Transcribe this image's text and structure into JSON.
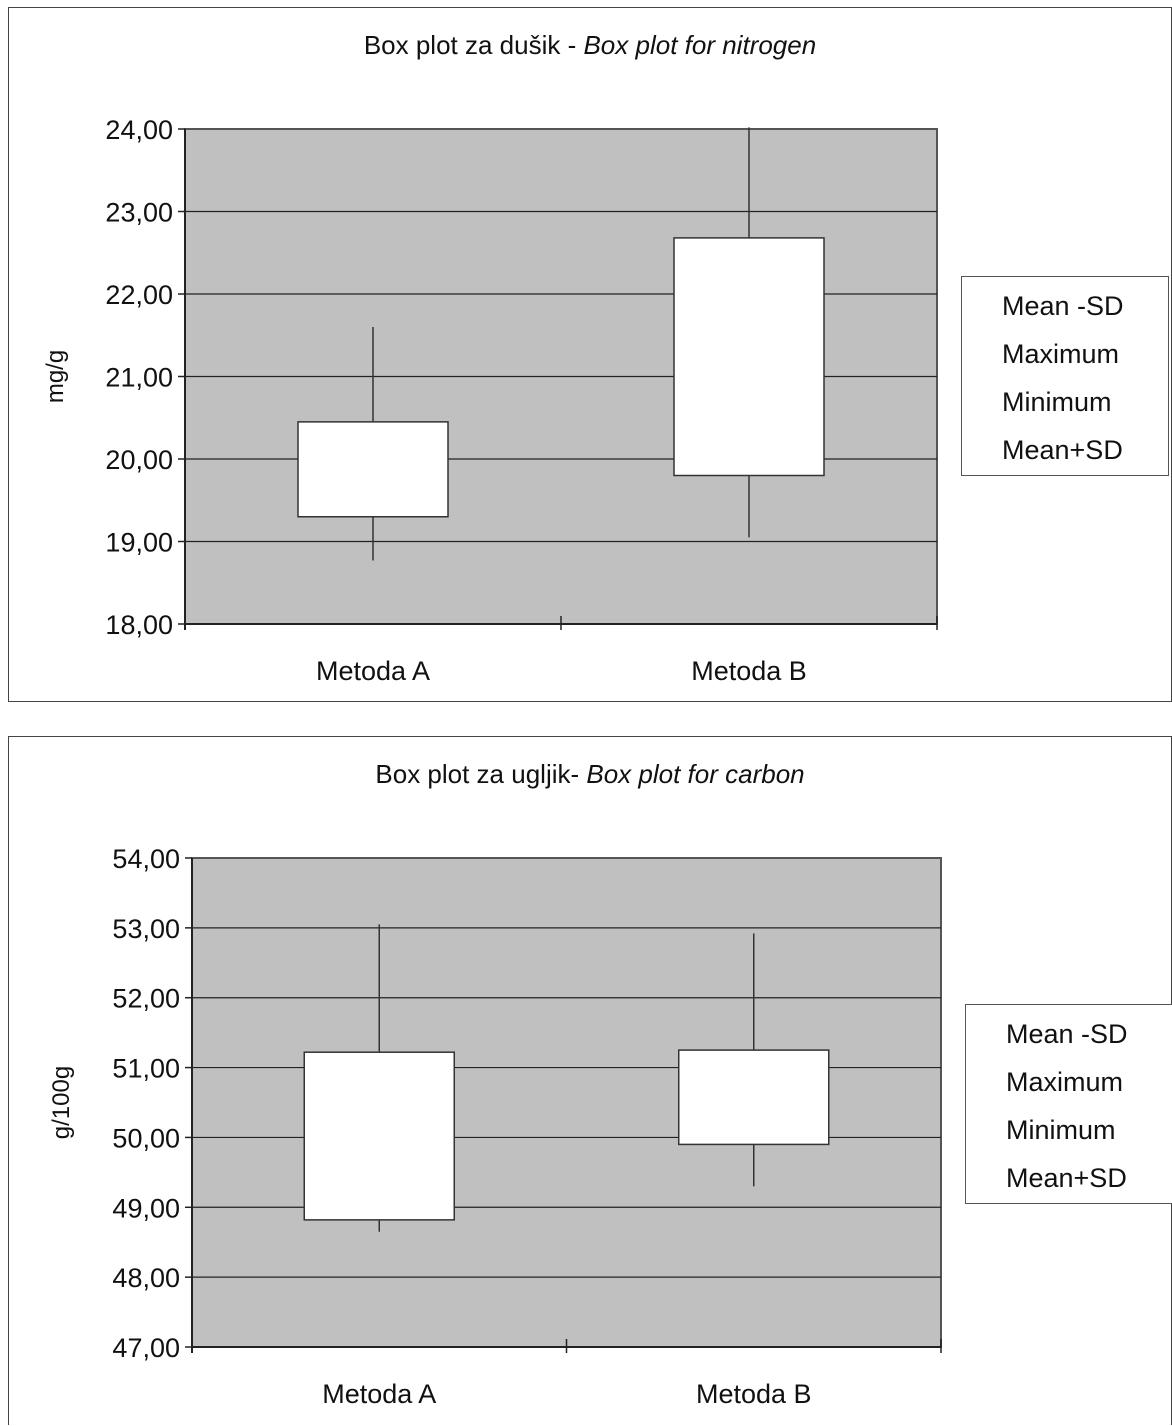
{
  "chart_data": [
    {
      "type": "box",
      "title_plain": "Box plot za dušik - ",
      "title_italic": "Box plot for nitrogen",
      "ylabel": "mg/g",
      "ylim": [
        18,
        24
      ],
      "yticks": [
        "18,00",
        "19,00",
        "20,00",
        "21,00",
        "22,00",
        "23,00",
        "24,00"
      ],
      "categories": [
        "Metoda A",
        "Metoda B"
      ],
      "legend": [
        "Mean -SD",
        "Maximum",
        "Minimum",
        "Mean+SD"
      ],
      "legend_position": "right",
      "grid": true,
      "series": [
        {
          "category": "Metoda A",
          "mean_minus_sd": 19.3,
          "maximum": 21.6,
          "minimum": 18.77,
          "mean_plus_sd": 20.45
        },
        {
          "category": "Metoda B",
          "mean_minus_sd": 19.8,
          "maximum": 24.02,
          "minimum": 19.05,
          "mean_plus_sd": 22.68
        }
      ]
    },
    {
      "type": "box",
      "title_plain": "Box plot za ugljik- ",
      "title_italic": "Box plot for carbon",
      "ylabel": "g/100g",
      "ylim": [
        47,
        54
      ],
      "yticks": [
        "47,00",
        "48,00",
        "49,00",
        "50,00",
        "51,00",
        "52,00",
        "53,00",
        "54,00"
      ],
      "categories": [
        "Metoda A",
        "Metoda B"
      ],
      "legend": [
        "Mean -SD",
        "Maximum",
        "Minimum",
        "Mean+SD"
      ],
      "legend_position": "right",
      "grid": true,
      "series": [
        {
          "category": "Metoda A",
          "mean_minus_sd": 48.82,
          "maximum": 53.05,
          "minimum": 48.65,
          "mean_plus_sd": 51.22
        },
        {
          "category": "Metoda B",
          "mean_minus_sd": 49.9,
          "maximum": 52.92,
          "minimum": 49.3,
          "mean_plus_sd": 51.25
        }
      ]
    }
  ],
  "colors": {
    "plot_background": "#c0c0c0",
    "box_fill": "#ffffff",
    "line": "#333333"
  }
}
